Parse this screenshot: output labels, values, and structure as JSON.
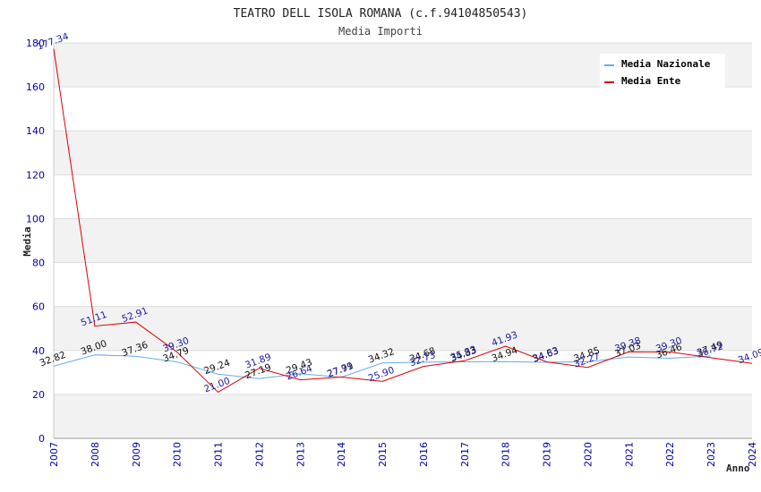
{
  "chart_data": {
    "type": "line",
    "title": "TEATRO DELL ISOLA ROMANA (c.f.94104850543)",
    "subtitle": "Media Importi",
    "xlabel": "Anno",
    "ylabel": "Media",
    "ylim": [
      0,
      180
    ],
    "yticks": [
      0,
      20,
      40,
      60,
      80,
      100,
      120,
      140,
      160,
      180
    ],
    "categories": [
      "2007",
      "2008",
      "2009",
      "2010",
      "2011",
      "2012",
      "2013",
      "2014",
      "2015",
      "2016",
      "2017",
      "2018",
      "2019",
      "2020",
      "2021",
      "2022",
      "2023",
      "2024"
    ],
    "series": [
      {
        "name": "Media Nazionale",
        "color": "#66aaee",
        "values": [
          32.82,
          38.0,
          37.36,
          34.79,
          29.24,
          27.19,
          29.43,
          27.79,
          34.32,
          34.68,
          34.83,
          34.94,
          34.63,
          34.85,
          37.03,
          36.46,
          37.49,
          null
        ],
        "labels": [
          "32.82",
          "38.00",
          "37.36",
          "34.79",
          "29.24",
          "27.19",
          "29.43",
          "27.79",
          "34.32",
          "34.68",
          "34.83",
          "34.94",
          "34.63",
          "34.85",
          "37.03",
          "36.46",
          "37.49",
          ""
        ]
      },
      {
        "name": "Media Ente",
        "color": "#dd0000",
        "values": [
          177.34,
          51.11,
          52.91,
          39.3,
          21.0,
          31.89,
          26.64,
          27.91,
          25.9,
          32.73,
          35.33,
          41.93,
          34.83,
          32.27,
          39.38,
          39.3,
          36.72,
          34.09
        ],
        "labels": [
          "177.34",
          "51.11",
          "52.91",
          "39.30",
          "21.00",
          "31.89",
          "26.64",
          "27.91",
          "25.90",
          "32.73",
          "35.33",
          "41.93",
          "34.83",
          "32.27",
          "39.38",
          "39.30",
          "36.72",
          "34.09"
        ]
      }
    ],
    "legend_position": "top-right",
    "grid": true
  }
}
